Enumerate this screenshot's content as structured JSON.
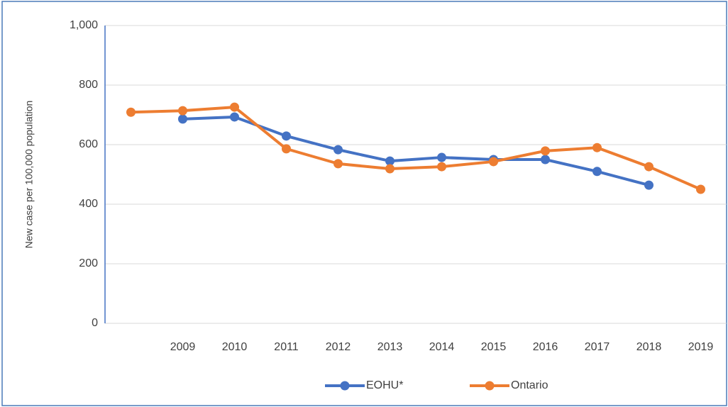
{
  "chart_data": {
    "type": "line",
    "y_label": "New case per 100,000 population",
    "categories": [
      null,
      "2009",
      "2010",
      "2011",
      "2012",
      "2013",
      "2014",
      "2015",
      "2016",
      "2017",
      "2018",
      "2019"
    ],
    "series": [
      {
        "name": "EOHU*",
        "color": "#4472c4",
        "values": [
          null,
          686,
          693,
          629,
          583,
          545,
          557,
          550,
          550,
          510,
          464,
          null
        ]
      },
      {
        "name": "Ontario",
        "color": "#ed7d31",
        "values": [
          709,
          714,
          726,
          586,
          536,
          519,
          526,
          543,
          579,
          590,
          526,
          450
        ]
      }
    ],
    "ylim": [
      0,
      1000
    ],
    "yticks": [
      0,
      200,
      400,
      600,
      800,
      {
        "value": 1000,
        "label": "1,000"
      }
    ],
    "grid": true,
    "legend": "bottom"
  }
}
